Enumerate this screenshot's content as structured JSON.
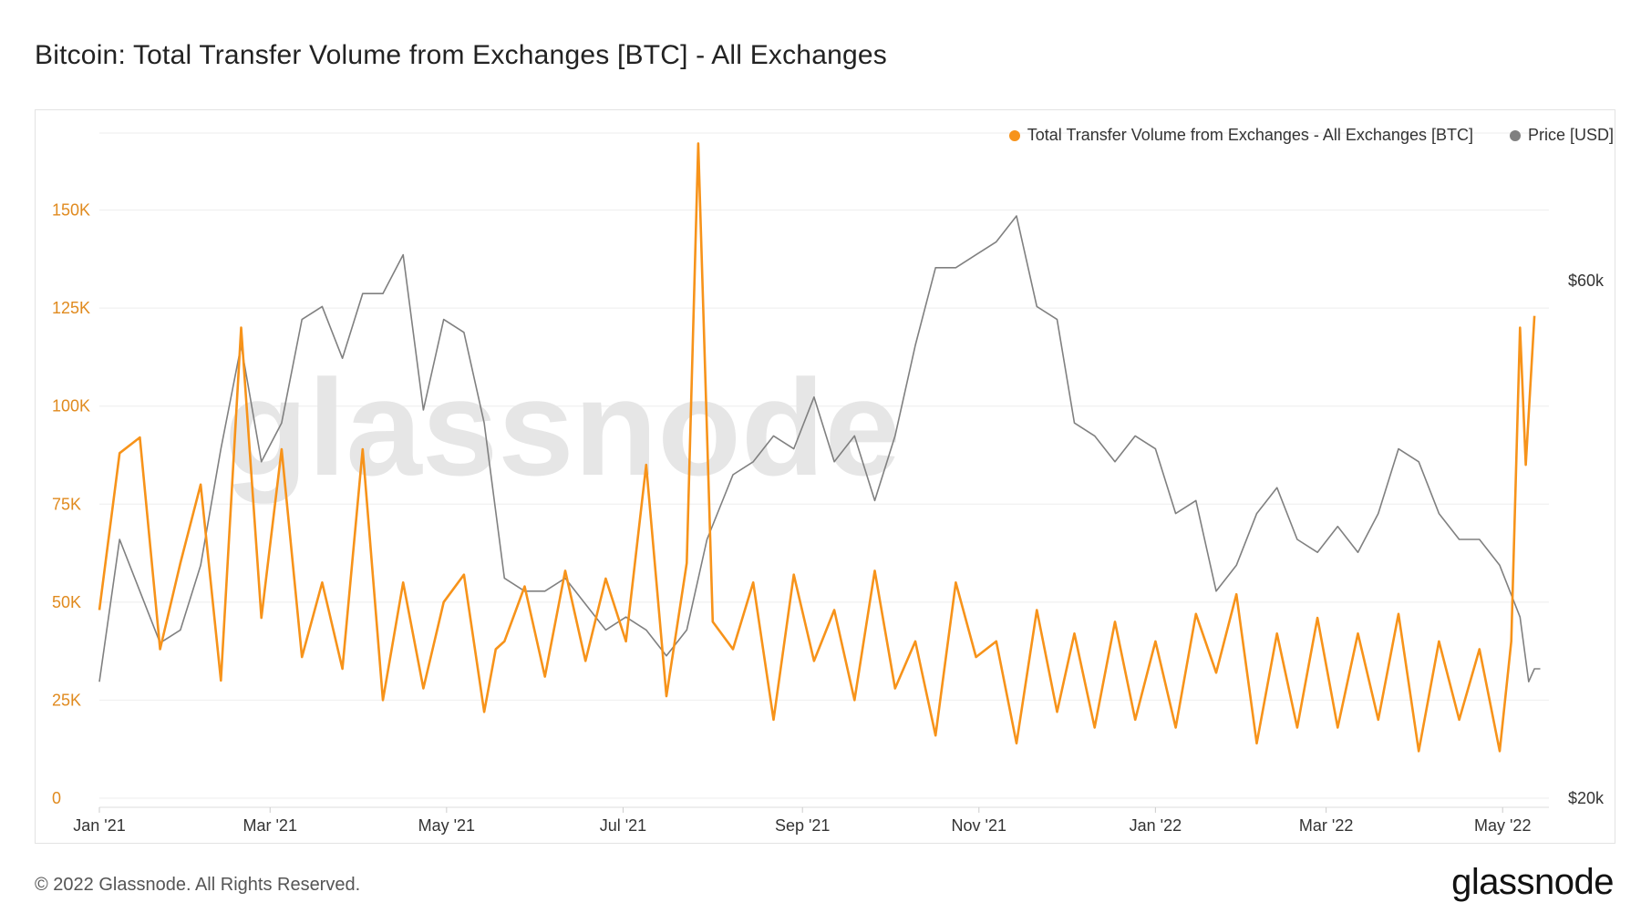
{
  "title": "Bitcoin: Total Transfer Volume from Exchanges [BTC] - All Exchanges",
  "legend": {
    "volume_label": "Total Transfer Volume from Exchanges - All Exchanges [BTC]",
    "price_label": "Price [USD]"
  },
  "watermark": "glassnode",
  "footer": {
    "copyright": "© 2022 Glassnode. All Rights Reserved.",
    "logo": "glassnode"
  },
  "colors": {
    "volume": "#f7931a",
    "price": "#808080",
    "grid": "#eeeeee",
    "y_ticks": "#e08a1e"
  },
  "chart_data": {
    "type": "line",
    "title": "Bitcoin: Total Transfer Volume from Exchanges [BTC] - All Exchanges",
    "x_ticks": [
      "Jan '21",
      "Mar '21",
      "May '21",
      "Jul '21",
      "Sep '21",
      "Nov '21",
      "Jan '22",
      "Mar '22",
      "May '22"
    ],
    "y_left": {
      "ticks": [
        "0",
        "25K",
        "50K",
        "75K",
        "100K",
        "125K",
        "150K"
      ],
      "range": [
        0,
        165000
      ]
    },
    "y_right": {
      "ticks": [
        "$20k",
        "$60k"
      ],
      "range": [
        20000,
        70000
      ]
    },
    "grid": true,
    "legend_position": "top-right",
    "series": [
      {
        "name": "Total Transfer Volume from Exchanges - All Exchanges [BTC]",
        "axis": "left",
        "x": [
          "2021-01-01",
          "2021-01-08",
          "2021-01-15",
          "2021-01-22",
          "2021-01-29",
          "2021-02-05",
          "2021-02-12",
          "2021-02-19",
          "2021-02-26",
          "2021-03-05",
          "2021-03-12",
          "2021-03-19",
          "2021-03-26",
          "2021-04-02",
          "2021-04-09",
          "2021-04-16",
          "2021-04-23",
          "2021-04-30",
          "2021-05-07",
          "2021-05-14",
          "2021-05-18",
          "2021-05-21",
          "2021-05-28",
          "2021-06-04",
          "2021-06-11",
          "2021-06-18",
          "2021-06-25",
          "2021-07-02",
          "2021-07-09",
          "2021-07-16",
          "2021-07-23",
          "2021-07-27",
          "2021-08-01",
          "2021-08-08",
          "2021-08-15",
          "2021-08-22",
          "2021-08-29",
          "2021-09-05",
          "2021-09-12",
          "2021-09-19",
          "2021-09-26",
          "2021-10-03",
          "2021-10-10",
          "2021-10-17",
          "2021-10-24",
          "2021-10-31",
          "2021-11-07",
          "2021-11-14",
          "2021-11-21",
          "2021-11-28",
          "2021-12-04",
          "2021-12-11",
          "2021-12-18",
          "2021-12-25",
          "2022-01-01",
          "2022-01-08",
          "2022-01-15",
          "2022-01-22",
          "2022-01-29",
          "2022-02-05",
          "2022-02-12",
          "2022-02-19",
          "2022-02-26",
          "2022-03-05",
          "2022-03-12",
          "2022-03-19",
          "2022-03-26",
          "2022-04-02",
          "2022-04-09",
          "2022-04-16",
          "2022-04-23",
          "2022-04-30",
          "2022-05-04",
          "2022-05-07",
          "2022-05-09",
          "2022-05-12"
        ],
        "values": [
          48000,
          88000,
          92000,
          38000,
          60000,
          80000,
          30000,
          120000,
          46000,
          89000,
          36000,
          55000,
          33000,
          89000,
          25000,
          55000,
          28000,
          50000,
          57000,
          22000,
          38000,
          40000,
          54000,
          31000,
          58000,
          35000,
          56000,
          40000,
          85000,
          26000,
          60000,
          167000,
          45000,
          38000,
          55000,
          20000,
          57000,
          35000,
          48000,
          25000,
          58000,
          28000,
          40000,
          16000,
          55000,
          36000,
          40000,
          14000,
          48000,
          22000,
          42000,
          18000,
          45000,
          20000,
          40000,
          18000,
          47000,
          32000,
          52000,
          14000,
          42000,
          18000,
          46000,
          18000,
          42000,
          20000,
          47000,
          12000,
          40000,
          20000,
          38000,
          12000,
          40000,
          120000,
          85000,
          123000
        ]
      },
      {
        "name": "Price [USD]",
        "axis": "right",
        "x": [
          "2021-01-01",
          "2021-01-08",
          "2021-01-15",
          "2021-01-22",
          "2021-01-29",
          "2021-02-05",
          "2021-02-12",
          "2021-02-19",
          "2021-02-26",
          "2021-03-05",
          "2021-03-12",
          "2021-03-19",
          "2021-03-26",
          "2021-04-02",
          "2021-04-09",
          "2021-04-16",
          "2021-04-23",
          "2021-04-30",
          "2021-05-07",
          "2021-05-14",
          "2021-05-21",
          "2021-05-28",
          "2021-06-04",
          "2021-06-11",
          "2021-06-18",
          "2021-06-25",
          "2021-07-02",
          "2021-07-09",
          "2021-07-16",
          "2021-07-23",
          "2021-07-30",
          "2021-08-08",
          "2021-08-15",
          "2021-08-22",
          "2021-08-29",
          "2021-09-05",
          "2021-09-12",
          "2021-09-19",
          "2021-09-26",
          "2021-10-03",
          "2021-10-10",
          "2021-10-17",
          "2021-10-24",
          "2021-10-31",
          "2021-11-07",
          "2021-11-14",
          "2021-11-21",
          "2021-11-28",
          "2021-12-04",
          "2021-12-11",
          "2021-12-18",
          "2021-12-25",
          "2022-01-01",
          "2022-01-08",
          "2022-01-15",
          "2022-01-22",
          "2022-01-29",
          "2022-02-05",
          "2022-02-12",
          "2022-02-19",
          "2022-02-26",
          "2022-03-05",
          "2022-03-12",
          "2022-03-19",
          "2022-03-26",
          "2022-04-02",
          "2022-04-09",
          "2022-04-16",
          "2022-04-23",
          "2022-04-30",
          "2022-05-07",
          "2022-05-10",
          "2022-05-12",
          "2022-05-14"
        ],
        "values": [
          29000,
          40000,
          36000,
          32000,
          33000,
          38000,
          47000,
          55000,
          46000,
          49000,
          57000,
          58000,
          54000,
          59000,
          59000,
          62000,
          50000,
          57000,
          56000,
          49000,
          37000,
          36000,
          36000,
          37000,
          35000,
          33000,
          34000,
          33000,
          31000,
          33000,
          40000,
          45000,
          46000,
          48000,
          47000,
          51000,
          46000,
          48000,
          43000,
          48000,
          55000,
          61000,
          61000,
          62000,
          63000,
          65000,
          58000,
          57000,
          49000,
          48000,
          46000,
          48000,
          47000,
          42000,
          43000,
          36000,
          38000,
          42000,
          44000,
          40000,
          39000,
          41000,
          39000,
          42000,
          47000,
          46000,
          42000,
          40000,
          40000,
          38000,
          34000,
          29000,
          30000,
          30000
        ]
      }
    ]
  }
}
